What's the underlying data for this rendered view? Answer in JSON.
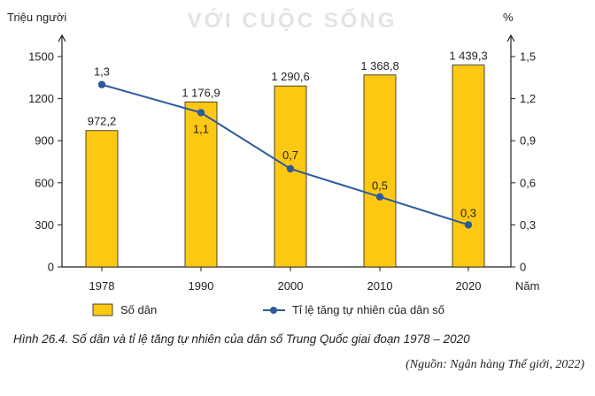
{
  "watermark": "VỚI CUỘC SỐNG",
  "caption": "Hình 26.4. Số dân và tỉ lệ tăng tự nhiên của dân số Trung Quốc  giai đoạn 1978 – 2020",
  "source": "(Nguồn: Ngân hàng Thế giới, 2022)",
  "colors": {
    "bar_fill": "#FDC811",
    "bar_stroke": "#231f20",
    "line": "#2C5A9C",
    "marker": "#2C5A9C",
    "axis": "#231f20",
    "text": "#231f20",
    "watermark": "#e3e3e3"
  },
  "chart_data": {
    "type": "bar",
    "categories": [
      "1978",
      "1990",
      "2000",
      "2010",
      "2020"
    ],
    "x_label": "Năm",
    "left_axis": {
      "label": "Triệu người",
      "ticks": [
        0,
        300,
        600,
        900,
        1200,
        1500
      ],
      "tick_labels": [
        "0",
        "300",
        "600",
        "900",
        "1200",
        "1500"
      ],
      "range": [
        0,
        1500
      ]
    },
    "right_axis": {
      "label": "%",
      "ticks": [
        0,
        0.3,
        0.6,
        0.9,
        1.2,
        1.5
      ],
      "tick_labels": [
        "0",
        "0,3",
        "0,6",
        "0,9",
        "1,2",
        "1,5"
      ],
      "range": [
        0,
        1.5
      ]
    },
    "series": [
      {
        "name": "Số dân",
        "type": "bar",
        "axis": "left",
        "values": [
          972.2,
          1176.9,
          1290.6,
          1368.8,
          1439.3
        ],
        "labels": [
          "972,2",
          "1 176,9",
          "1 290,6",
          "1 368,8",
          "1 439,3"
        ]
      },
      {
        "name": "Tỉ lệ tăng tự nhiên của dân số",
        "type": "line",
        "axis": "right",
        "values": [
          1.3,
          1.1,
          0.7,
          0.5,
          0.3
        ],
        "labels": [
          "1,3",
          "1,1",
          "0,7",
          "0,5",
          "0,3"
        ]
      }
    ],
    "legend": [
      {
        "name": "Số dân",
        "marker": "bar"
      },
      {
        "name": "Tỉ lệ tăng tự nhiên của dân số",
        "marker": "line"
      }
    ],
    "legend_position": "bottom",
    "grid": false
  }
}
